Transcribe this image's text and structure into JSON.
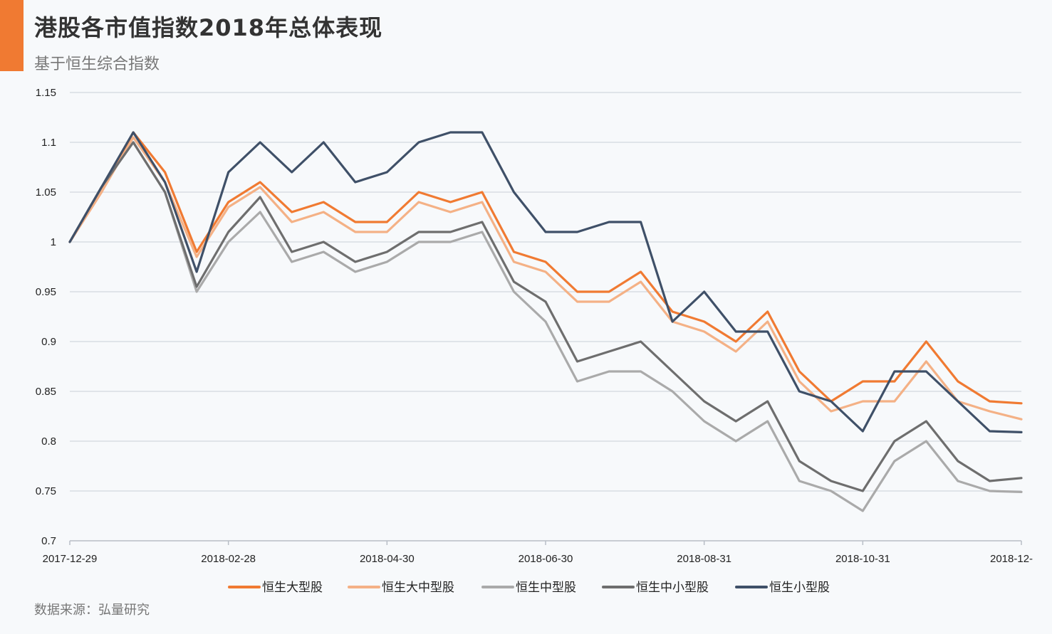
{
  "header": {
    "title": "港股各市值指数2018年总体表现",
    "subtitle": "基于恒生综合指数"
  },
  "footer": {
    "source": "数据来源：弘量研究"
  },
  "colors": {
    "accent": "#f07a32",
    "grid": "#d8dde3"
  },
  "chart_data": {
    "type": "line",
    "title": "港股各市值指数2018年总体表现",
    "subtitle": "基于恒生综合指数",
    "ylim": [
      0.7,
      1.15
    ],
    "yticks": [
      "1.15",
      "1.1",
      "1.05",
      "1",
      "0.95",
      "0.9",
      "0.85",
      "0.8",
      "0.75",
      "0.7"
    ],
    "ytick_values": [
      1.15,
      1.1,
      1.05,
      1.0,
      0.95,
      0.9,
      0.85,
      0.8,
      0.75,
      0.7
    ],
    "xticks": [
      "2017-12-29",
      "2018-02-28",
      "2018-04-30",
      "2018-06-30",
      "2018-08-31",
      "2018-10-31",
      "2018-12-"
    ],
    "grid": true,
    "legend_position": "bottom",
    "x": [
      "2017-12-29",
      "2018-01-12",
      "2018-01-26",
      "2018-02-07",
      "2018-02-09",
      "2018-02-28",
      "2018-03-09",
      "2018-03-21",
      "2018-04-03",
      "2018-04-18",
      "2018-04-30",
      "2018-05-11",
      "2018-05-25",
      "2018-06-05",
      "2018-06-18",
      "2018-06-30",
      "2018-07-11",
      "2018-07-25",
      "2018-08-03",
      "2018-08-16",
      "2018-08-31",
      "2018-09-10",
      "2018-09-21",
      "2018-10-05",
      "2018-10-19",
      "2018-10-31",
      "2018-11-12",
      "2018-11-23",
      "2018-12-05",
      "2018-12-17",
      "2018-12-31"
    ],
    "series": [
      {
        "name": "恒生大型股",
        "color": "#f07a32",
        "values": [
          1.0,
          1.05,
          1.11,
          1.07,
          0.99,
          1.04,
          1.06,
          1.03,
          1.04,
          1.02,
          1.02,
          1.05,
          1.04,
          1.05,
          0.99,
          0.98,
          0.95,
          0.95,
          0.97,
          0.93,
          0.92,
          0.9,
          0.93,
          0.87,
          0.84,
          0.86,
          0.86,
          0.9,
          0.86,
          0.84,
          0.838
        ]
      },
      {
        "name": "恒生大中型股",
        "color": "#f4b186",
        "values": [
          1.0,
          1.05,
          1.105,
          1.06,
          0.985,
          1.035,
          1.055,
          1.02,
          1.03,
          1.01,
          1.01,
          1.04,
          1.03,
          1.04,
          0.98,
          0.97,
          0.94,
          0.94,
          0.96,
          0.92,
          0.91,
          0.89,
          0.92,
          0.86,
          0.83,
          0.84,
          0.84,
          0.88,
          0.84,
          0.83,
          0.822
        ]
      },
      {
        "name": "恒生中型股",
        "color": "#aaaaaa",
        "values": [
          1.0,
          1.055,
          1.1,
          1.05,
          0.95,
          1.0,
          1.03,
          0.98,
          0.99,
          0.97,
          0.98,
          1.0,
          1.0,
          1.01,
          0.95,
          0.92,
          0.86,
          0.87,
          0.87,
          0.85,
          0.82,
          0.8,
          0.82,
          0.76,
          0.75,
          0.73,
          0.78,
          0.8,
          0.76,
          0.75,
          0.749
        ]
      },
      {
        "name": "恒生中小型股",
        "color": "#6e6e6e",
        "values": [
          1.0,
          1.055,
          1.1,
          1.05,
          0.955,
          1.01,
          1.045,
          0.99,
          1.0,
          0.98,
          0.99,
          1.01,
          1.01,
          1.02,
          0.96,
          0.94,
          0.88,
          0.89,
          0.9,
          0.87,
          0.84,
          0.82,
          0.84,
          0.78,
          0.76,
          0.75,
          0.8,
          0.82,
          0.78,
          0.76,
          0.763
        ]
      },
      {
        "name": "恒生小型股",
        "color": "#3f5068",
        "values": [
          1.0,
          1.055,
          1.11,
          1.06,
          0.97,
          1.07,
          1.1,
          1.07,
          1.1,
          1.06,
          1.07,
          1.1,
          1.11,
          1.11,
          1.05,
          1.01,
          1.01,
          1.02,
          1.02,
          0.92,
          0.95,
          0.91,
          0.91,
          0.85,
          0.84,
          0.81,
          0.87,
          0.87,
          0.84,
          0.81,
          0.809
        ]
      }
    ]
  }
}
